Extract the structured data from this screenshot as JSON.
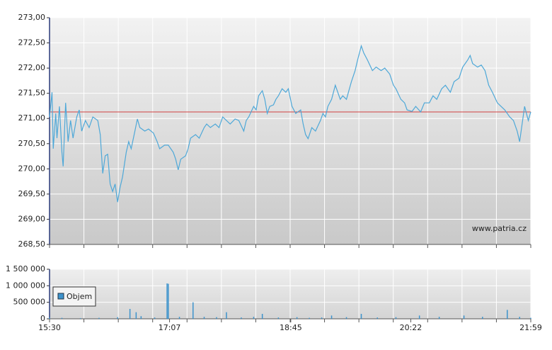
{
  "chart_data": [
    {
      "type": "line",
      "color": "#4ea8d8",
      "grid": true,
      "xlim": [
        "15:30",
        "21:59"
      ],
      "ylim": [
        268.5,
        273
      ],
      "yticks": [
        {
          "value": 268.5,
          "label": "268,50"
        },
        {
          "value": 269,
          "label": "269,00"
        },
        {
          "value": 269.5,
          "label": "269,50"
        },
        {
          "value": 270,
          "label": "270,00"
        },
        {
          "value": 270.5,
          "label": "270,50"
        },
        {
          "value": 271,
          "label": "271,00"
        },
        {
          "value": 271.5,
          "label": "271,50"
        },
        {
          "value": 272,
          "label": "272,00"
        },
        {
          "value": 272.5,
          "label": "272,50"
        },
        {
          "value": 273,
          "label": "273,00"
        }
      ],
      "reference_line": 271.13,
      "reference_color": "#d04040",
      "annotation": "www.patria.cz",
      "x": [
        "15:30",
        "15:32",
        "15:33",
        "15:35",
        "15:36",
        "15:38",
        "15:40",
        "15:41",
        "15:43",
        "15:45",
        "15:47",
        "15:49",
        "15:52",
        "15:54",
        "15:56",
        "15:59",
        "16:02",
        "16:05",
        "16:09",
        "16:11",
        "16:13",
        "16:15",
        "16:17",
        "16:19",
        "16:21",
        "16:23",
        "16:25",
        "16:27",
        "16:29",
        "16:32",
        "16:34",
        "16:36",
        "16:39",
        "16:41",
        "16:43",
        "16:47",
        "16:50",
        "16:54",
        "16:57",
        "16:59",
        "17:03",
        "17:06",
        "17:10",
        "17:12",
        "17:14",
        "17:16",
        "17:20",
        "17:22",
        "17:24",
        "17:28",
        "17:31",
        "17:35",
        "17:37",
        "17:40",
        "17:44",
        "17:47",
        "17:50",
        "17:53",
        "17:56",
        "18:00",
        "18:03",
        "18:07",
        "18:09",
        "18:11",
        "18:15",
        "18:17",
        "18:19",
        "18:22",
        "18:24",
        "18:26",
        "18:28",
        "18:31",
        "18:33",
        "18:35",
        "18:38",
        "18:41",
        "18:43",
        "18:46",
        "18:49",
        "18:53",
        "18:55",
        "18:57",
        "18:59",
        "19:02",
        "19:05",
        "19:09",
        "19:11",
        "19:13",
        "19:15",
        "19:18",
        "19:21",
        "19:25",
        "19:27",
        "19:30",
        "19:34",
        "19:37",
        "19:39",
        "19:42",
        "19:44",
        "19:47",
        "19:51",
        "19:54",
        "19:58",
        "20:01",
        "20:05",
        "20:08",
        "20:10",
        "20:14",
        "20:17",
        "20:19",
        "20:23",
        "20:26",
        "20:30",
        "20:33",
        "20:37",
        "20:40",
        "20:43",
        "20:47",
        "20:50",
        "20:54",
        "20:57",
        "21:01",
        "21:04",
        "21:08",
        "21:10",
        "21:12",
        "21:16",
        "21:19",
        "21:22",
        "21:25",
        "21:28",
        "21:32",
        "21:35",
        "21:38",
        "21:42",
        "21:45",
        "21:48",
        "21:50",
        "21:52",
        "21:54",
        "21:57",
        "21:59"
      ],
      "values": [
        271.03,
        271.52,
        270.4,
        271.1,
        270.61,
        271.24,
        270.33,
        270.05,
        271.31,
        270.54,
        270.96,
        270.61,
        271.03,
        271.17,
        270.75,
        270.96,
        270.82,
        271.03,
        270.96,
        270.68,
        269.91,
        270.26,
        270.29,
        269.7,
        269.55,
        269.7,
        269.34,
        269.63,
        269.84,
        270.33,
        270.54,
        270.4,
        270.75,
        270.99,
        270.82,
        270.75,
        270.79,
        270.71,
        270.54,
        270.4,
        270.47,
        270.47,
        270.33,
        270.19,
        269.98,
        270.19,
        270.26,
        270.4,
        270.61,
        270.68,
        270.61,
        270.82,
        270.89,
        270.82,
        270.89,
        270.82,
        271.03,
        270.96,
        270.89,
        270.99,
        270.96,
        270.75,
        270.96,
        271.03,
        271.24,
        271.17,
        271.45,
        271.55,
        271.38,
        271.1,
        271.24,
        271.27,
        271.38,
        271.45,
        271.59,
        271.52,
        271.59,
        271.24,
        271.1,
        271.17,
        270.89,
        270.68,
        270.6,
        270.82,
        270.75,
        270.96,
        271.1,
        271.03,
        271.24,
        271.38,
        271.66,
        271.38,
        271.45,
        271.38,
        271.73,
        271.95,
        272.16,
        272.44,
        272.3,
        272.16,
        271.95,
        272.02,
        271.95,
        272.0,
        271.88,
        271.66,
        271.59,
        271.38,
        271.31,
        271.17,
        271.14,
        271.24,
        271.13,
        271.31,
        271.31,
        271.45,
        271.38,
        271.59,
        271.66,
        271.52,
        271.73,
        271.8,
        272.02,
        272.16,
        272.25,
        272.09,
        272.02,
        272.06,
        271.95,
        271.66,
        271.52,
        271.31,
        271.24,
        271.17,
        271.03,
        270.96,
        270.75,
        270.54,
        270.89,
        271.24,
        270.96,
        271.13
      ]
    },
    {
      "type": "bar",
      "grid": true,
      "legend": "left",
      "xlim": [
        "15:30",
        "21:59"
      ],
      "xticks": [
        "15:30",
        "17:07",
        "18:45",
        "20:22",
        "21:59"
      ],
      "ylim": [
        0,
        1500000
      ],
      "yticks": [
        0,
        {
          "value": 500000,
          "label": "500 000"
        },
        {
          "value": 1000000,
          "label": "1 000 000"
        },
        {
          "value": 1500000,
          "label": "1 500 000"
        }
      ],
      "x": [
        "15:30",
        "15:40",
        "15:55",
        "16:10",
        "16:25",
        "16:35",
        "16:40",
        "16:44",
        "16:55",
        "17:05",
        "17:06",
        "17:15",
        "17:26",
        "17:35",
        "17:45",
        "17:53",
        "18:05",
        "18:15",
        "18:22",
        "18:35",
        "18:50",
        "19:00",
        "19:10",
        "19:18",
        "19:30",
        "19:42",
        "19:55",
        "20:10",
        "20:29",
        "20:45",
        "21:05",
        "21:20",
        "21:40",
        "21:50",
        "21:59"
      ],
      "series": [
        {
          "name": "Objem",
          "color": "#3d93cc",
          "values": [
            40000,
            30000,
            20000,
            30000,
            50000,
            300000,
            200000,
            80000,
            40000,
            1070000,
            1060000,
            60000,
            500000,
            60000,
            50000,
            200000,
            40000,
            60000,
            150000,
            40000,
            50000,
            30000,
            40000,
            100000,
            50000,
            150000,
            40000,
            50000,
            100000,
            60000,
            100000,
            60000,
            270000,
            60000,
            30000
          ]
        }
      ]
    }
  ]
}
